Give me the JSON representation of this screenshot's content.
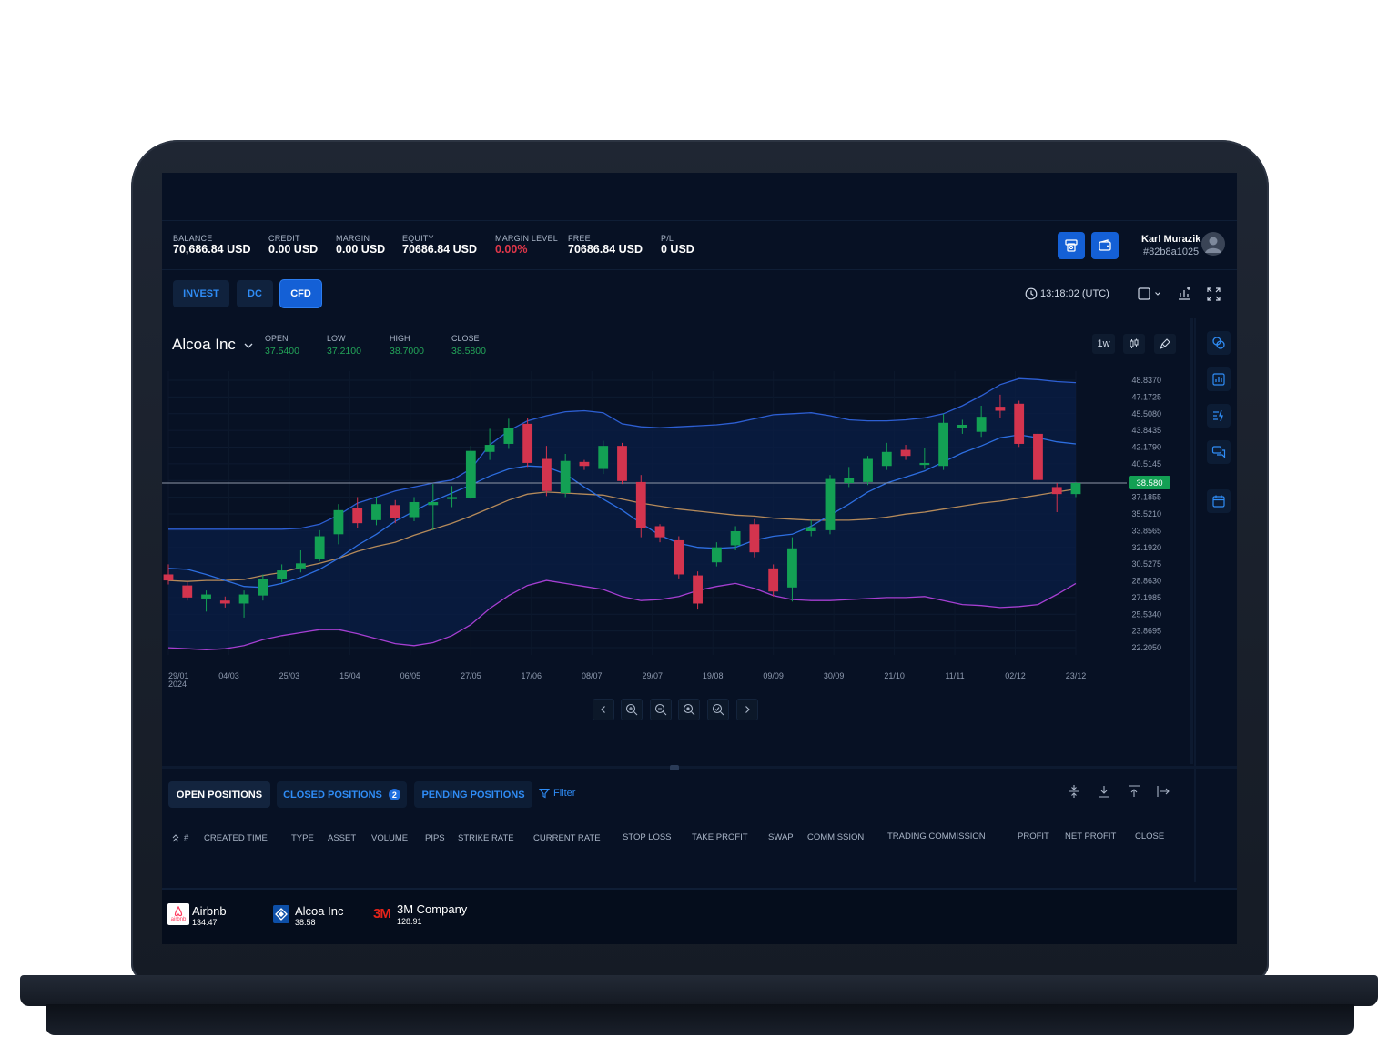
{
  "header": {
    "stats": [
      {
        "label": "BALANCE",
        "value": "70,686.84 USD"
      },
      {
        "label": "CREDIT",
        "value": "0.00 USD"
      },
      {
        "label": "MARGIN",
        "value": "0.00 USD"
      },
      {
        "label": "EQUITY",
        "value": "70686.84 USD"
      },
      {
        "label": "MARGIN LEVEL",
        "value": "0.00%"
      },
      {
        "label": "FREE",
        "value": "70686.84 USD"
      },
      {
        "label": "P/L",
        "value": "0 USD"
      }
    ],
    "user": {
      "name": "Karl Murazik",
      "id": "#82b8a1025"
    }
  },
  "tabs": [
    "INVEST",
    "DC",
    "CFD"
  ],
  "active_tab": "CFD",
  "clock": "13:18:02 (UTC)",
  "chart": {
    "symbol": "Alcoa Inc",
    "timeframe": "1w",
    "ohlc": [
      {
        "label": "OPEN",
        "value": "37.5400"
      },
      {
        "label": "LOW",
        "value": "37.2100"
      },
      {
        "label": "HIGH",
        "value": "38.7000"
      },
      {
        "label": "CLOSE",
        "value": "38.5800"
      }
    ]
  },
  "chart_data": {
    "type": "candlestick",
    "title": "",
    "price_label": "38.580",
    "y_ticks": [
      "48.8370",
      "47.1725",
      "45.5080",
      "43.8435",
      "42.1790",
      "40.5145",
      "38.8500",
      "37.1855",
      "35.5210",
      "33.8565",
      "32.1920",
      "30.5275",
      "28.8630",
      "27.1985",
      "25.5340",
      "23.8695",
      "22.2050"
    ],
    "ylim": [
      22.205,
      48.837
    ],
    "x_ticks": [
      "29/01\n2024",
      "04/03",
      "25/03",
      "15/04",
      "06/05",
      "27/05",
      "17/06",
      "08/07",
      "29/07",
      "19/08",
      "09/09",
      "30/09",
      "21/10",
      "11/11",
      "02/12",
      "23/12"
    ],
    "candles": [
      {
        "o": 29.5,
        "c": 28.9,
        "h": 30.5,
        "l": 28.5
      },
      {
        "o": 28.4,
        "c": 27.2,
        "h": 28.8,
        "l": 26.9
      },
      {
        "o": 27.1,
        "c": 27.5,
        "h": 27.9,
        "l": 25.8
      },
      {
        "o": 26.9,
        "c": 26.6,
        "h": 27.3,
        "l": 26.2
      },
      {
        "o": 26.6,
        "c": 27.5,
        "h": 27.9,
        "l": 25.2
      },
      {
        "o": 27.4,
        "c": 29.0,
        "h": 29.5,
        "l": 26.9
      },
      {
        "o": 29.0,
        "c": 29.9,
        "h": 30.5,
        "l": 28.7
      },
      {
        "o": 30.1,
        "c": 30.6,
        "h": 31.9,
        "l": 29.7
      },
      {
        "o": 31.0,
        "c": 33.3,
        "h": 33.9,
        "l": 30.8
      },
      {
        "o": 33.5,
        "c": 35.9,
        "h": 36.5,
        "l": 32.5
      },
      {
        "o": 36.1,
        "c": 34.6,
        "h": 37.2,
        "l": 34.1
      },
      {
        "o": 34.9,
        "c": 36.5,
        "h": 37.2,
        "l": 34.4
      },
      {
        "o": 36.4,
        "c": 35.1,
        "h": 36.9,
        "l": 34.6
      },
      {
        "o": 35.2,
        "c": 36.7,
        "h": 37.2,
        "l": 34.8
      },
      {
        "o": 36.4,
        "c": 36.7,
        "h": 38.5,
        "l": 33.9
      },
      {
        "o": 37.0,
        "c": 37.2,
        "h": 38.3,
        "l": 36.2
      },
      {
        "o": 37.1,
        "c": 41.8,
        "h": 42.3,
        "l": 37.0
      },
      {
        "o": 41.7,
        "c": 42.4,
        "h": 44.0,
        "l": 40.9
      },
      {
        "o": 42.5,
        "c": 44.1,
        "h": 45.0,
        "l": 42.0
      },
      {
        "o": 44.5,
        "c": 40.6,
        "h": 45.1,
        "l": 40.2
      },
      {
        "o": 41.0,
        "c": 37.8,
        "h": 42.3,
        "l": 37.3
      },
      {
        "o": 37.6,
        "c": 40.8,
        "h": 41.5,
        "l": 37.2
      },
      {
        "o": 40.7,
        "c": 40.3,
        "h": 40.9,
        "l": 39.9
      },
      {
        "o": 40.0,
        "c": 42.3,
        "h": 42.8,
        "l": 39.5
      },
      {
        "o": 42.3,
        "c": 38.8,
        "h": 42.6,
        "l": 38.5
      },
      {
        "o": 38.7,
        "c": 34.1,
        "h": 39.4,
        "l": 33.2
      },
      {
        "o": 34.3,
        "c": 33.2,
        "h": 34.5,
        "l": 32.7
      },
      {
        "o": 32.9,
        "c": 29.5,
        "h": 33.3,
        "l": 29.1
      },
      {
        "o": 29.4,
        "c": 26.6,
        "h": 29.8,
        "l": 26.0
      },
      {
        "o": 30.7,
        "c": 32.2,
        "h": 32.7,
        "l": 30.3
      },
      {
        "o": 32.4,
        "c": 33.8,
        "h": 34.3,
        "l": 31.9
      },
      {
        "o": 34.5,
        "c": 31.7,
        "h": 35.0,
        "l": 31.2
      },
      {
        "o": 30.1,
        "c": 27.8,
        "h": 30.5,
        "l": 27.3
      },
      {
        "o": 28.2,
        "c": 32.1,
        "h": 33.2,
        "l": 26.8
      },
      {
        "o": 33.8,
        "c": 34.2,
        "h": 34.9,
        "l": 33.3
      },
      {
        "o": 33.9,
        "c": 39.0,
        "h": 39.4,
        "l": 33.5
      },
      {
        "o": 38.6,
        "c": 39.1,
        "h": 40.2,
        "l": 38.2
      },
      {
        "o": 38.7,
        "c": 41.0,
        "h": 41.3,
        "l": 38.4
      },
      {
        "o": 40.3,
        "c": 41.7,
        "h": 42.6,
        "l": 39.9
      },
      {
        "o": 41.9,
        "c": 41.3,
        "h": 42.4,
        "l": 40.9
      },
      {
        "o": 40.4,
        "c": 40.6,
        "h": 42.1,
        "l": 40.0
      },
      {
        "o": 40.3,
        "c": 44.6,
        "h": 45.5,
        "l": 39.9
      },
      {
        "o": 44.1,
        "c": 44.4,
        "h": 44.9,
        "l": 43.5
      },
      {
        "o": 43.7,
        "c": 45.2,
        "h": 46.3,
        "l": 43.2
      },
      {
        "o": 46.2,
        "c": 45.8,
        "h": 47.4,
        "l": 45.1
      },
      {
        "o": 46.5,
        "c": 42.5,
        "h": 46.8,
        "l": 42.2
      },
      {
        "o": 43.5,
        "c": 38.9,
        "h": 43.8,
        "l": 38.6
      },
      {
        "o": 38.2,
        "c": 37.5,
        "h": 38.6,
        "l": 35.7
      },
      {
        "o": 37.5,
        "c": 38.6,
        "h": 38.7,
        "l": 37.2
      }
    ],
    "bands": {
      "upper": [
        34.0,
        34.0,
        34.0,
        34.0,
        34.0,
        34.0,
        34.0,
        34.1,
        34.5,
        35.4,
        36.6,
        37.2,
        37.8,
        38.2,
        38.6,
        38.9,
        40.0,
        42.4,
        43.8,
        44.8,
        45.3,
        45.7,
        45.8,
        45.6,
        44.5,
        44.2,
        44.1,
        44.2,
        44.3,
        44.4,
        44.6,
        45.0,
        45.4,
        45.5,
        45.6,
        45.3,
        44.9,
        44.8,
        44.8,
        44.9,
        45.1,
        45.5,
        46.3,
        47.3,
        48.4,
        49.0,
        48.9,
        48.7,
        48.6
      ],
      "middle": [
        30.1,
        30.0,
        29.5,
        28.9,
        28.3,
        28.2,
        28.6,
        29.2,
        30.0,
        31.1,
        32.4,
        33.5,
        34.8,
        35.8,
        36.8,
        37.6,
        38.4,
        39.3,
        40.0,
        40.3,
        40.2,
        39.5,
        38.2,
        37.0,
        35.9,
        34.6,
        33.4,
        32.6,
        32.2,
        32.1,
        32.2,
        32.9,
        33.3,
        33.5,
        34.3,
        35.4,
        36.5,
        37.7,
        38.6,
        39.2,
        39.8,
        40.7,
        41.6,
        42.3,
        43.1,
        43.4,
        43.1,
        42.7,
        42.5
      ],
      "ma": [
        28.9,
        28.8,
        28.9,
        28.9,
        29.0,
        29.4,
        29.7,
        30.2,
        30.6,
        31.1,
        31.8,
        32.3,
        32.7,
        33.4,
        34.0,
        34.6,
        35.3,
        36.1,
        36.9,
        37.5,
        37.7,
        37.6,
        37.5,
        37.4,
        37.0,
        36.6,
        36.3,
        36.0,
        35.8,
        35.6,
        35.4,
        35.3,
        35.1,
        35.0,
        34.9,
        34.9,
        34.9,
        35.0,
        35.2,
        35.5,
        35.7,
        36.0,
        36.3,
        36.6,
        36.8,
        37.1,
        37.4,
        37.7,
        38.0
      ],
      "lower": [
        22.2,
        22.1,
        22.0,
        22.1,
        22.4,
        23.0,
        23.4,
        23.7,
        24.0,
        24.0,
        23.6,
        23.1,
        22.6,
        22.4,
        22.7,
        23.4,
        24.5,
        26.1,
        27.4,
        28.4,
        28.9,
        28.6,
        28.3,
        28.0,
        27.3,
        26.9,
        27.0,
        27.3,
        27.9,
        28.3,
        28.6,
        28.1,
        27.4,
        27.0,
        26.9,
        26.9,
        27.0,
        27.1,
        27.2,
        27.2,
        27.3,
        26.9,
        26.5,
        26.4,
        26.2,
        26.3,
        26.5,
        27.5,
        28.6
      ]
    },
    "colors": {
      "up": "#13a054",
      "down": "#d3344e",
      "upper_band": "#2d5fd3",
      "middle_band": "#2d6ee0",
      "ma": "#b58a5a",
      "lower_band": "#a63fd2",
      "band_fill": "#0a1d45",
      "price_line": "#8f98a8"
    }
  },
  "positions": {
    "tabs": [
      {
        "label": "OPEN POSITIONS"
      },
      {
        "label": "CLOSED POSITIONS",
        "badge": "2"
      },
      {
        "label": "PENDING POSITIONS"
      }
    ],
    "filter": "Filter",
    "columns": [
      "#",
      "CREATED TIME",
      "TYPE",
      "ASSET",
      "VOLUME",
      "PIPS",
      "STRIKE RATE",
      "CURRENT RATE",
      "STOP LOSS",
      "TAKE PROFIT",
      "SWAP",
      "COMMISSION",
      "TRADING COMMISSION",
      "PROFIT",
      "NET PROFIT",
      "CLOSE"
    ]
  },
  "ticker": [
    {
      "name": "Airbnb",
      "price": "134.47",
      "logo_text": "airbnb"
    },
    {
      "name": "Alcoa Inc",
      "price": "38.58"
    },
    {
      "name": "3M Company",
      "price": "128.91",
      "logo_text": "3M"
    }
  ]
}
